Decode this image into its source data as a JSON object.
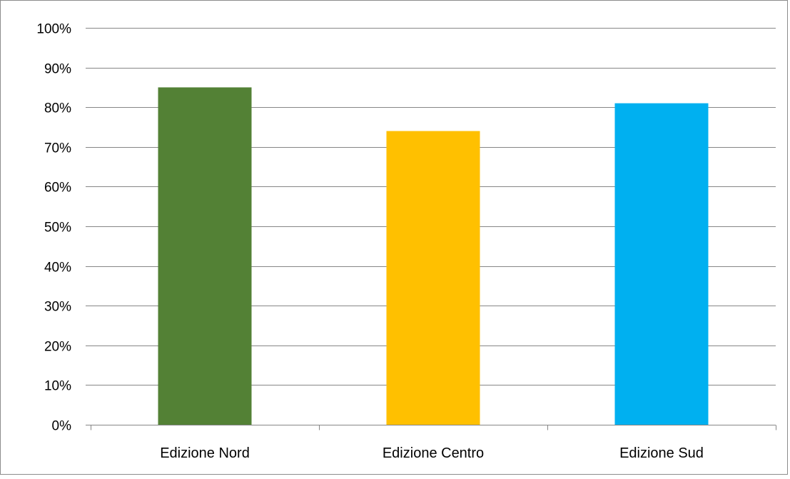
{
  "chart_data": {
    "type": "bar",
    "categories": [
      "Edizione Nord",
      "Edizione Centro",
      "Edizione Sud"
    ],
    "values": [
      85,
      74,
      81
    ],
    "colors": [
      "#538135",
      "#ffc000",
      "#00b0f0"
    ],
    "ylim": [
      0,
      100
    ],
    "yticks": [
      0,
      10,
      20,
      30,
      40,
      50,
      60,
      70,
      80,
      90,
      100
    ],
    "ytick_labels": [
      "0%",
      "10%",
      "20%",
      "30%",
      "40%",
      "50%",
      "60%",
      "70%",
      "80%",
      "90%",
      "100%"
    ],
    "grid": true,
    "legend": false,
    "title": "",
    "xlabel": "",
    "ylabel": ""
  }
}
